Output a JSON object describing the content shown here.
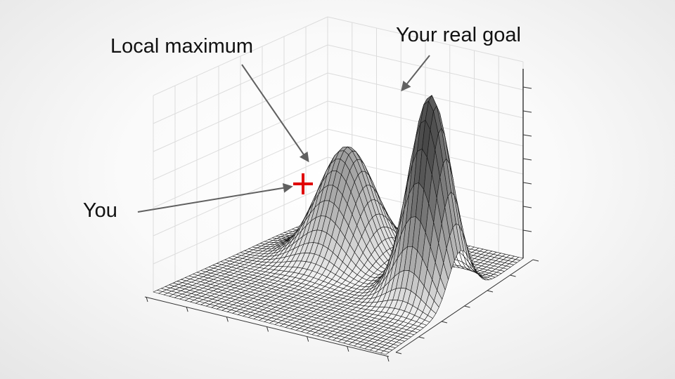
{
  "labels": {
    "local_max": "Local maximum",
    "real_goal": "Your real goal",
    "you": "You"
  },
  "surface": {
    "description_free": true,
    "peaks": [
      {
        "role": "local-maximum",
        "height": 0.55
      },
      {
        "role": "global-maximum",
        "height": 1.0
      }
    ]
  },
  "colors": {
    "marker": "#e00000",
    "arrow": "#606060",
    "text": "#111111"
  }
}
